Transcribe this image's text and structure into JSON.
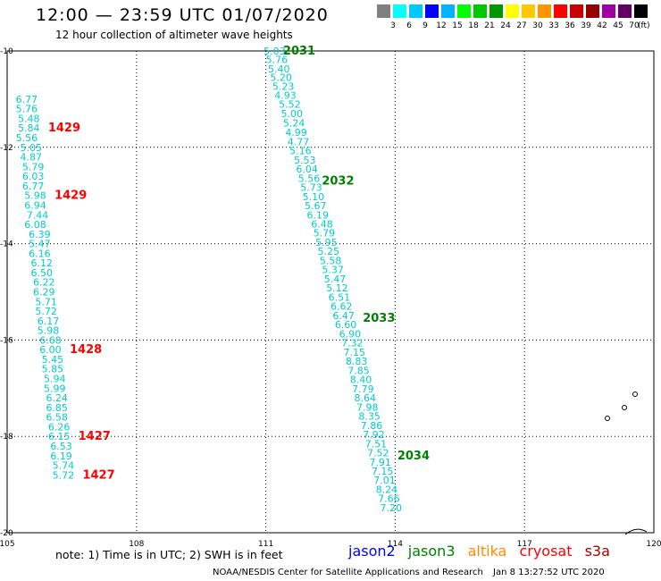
{
  "header": {
    "title": "12:00 — 23:59 UTC 01/07/2020",
    "subtitle": "12 hour collection of altimeter wave heights"
  },
  "legend": {
    "colors": [
      "#808080",
      "#00ffff",
      "#00c8ff",
      "#0000ff",
      "#00b4ff",
      "#00ff00",
      "#00c800",
      "#009600",
      "#ffff00",
      "#ffc800",
      "#ff9600",
      "#ff0000",
      "#c80000",
      "#960000",
      "#a000a0",
      "#640064",
      "#000000"
    ],
    "labels": [
      "3",
      "6",
      "9",
      "12",
      "15",
      "18",
      "21",
      "24",
      "27",
      "30",
      "33",
      "36",
      "39",
      "42",
      "45",
      "70"
    ],
    "units": "(ft)"
  },
  "footer": {
    "note": "note:  1) Time is in UTC;  2) SWH is in feet",
    "missions": [
      {
        "name": "jason2",
        "color": "#0000ff"
      },
      {
        "name": "jason3",
        "color": "#008000"
      },
      {
        "name": "altika",
        "color": "#ff8c00"
      },
      {
        "name": "cryosat",
        "color": "#ff0000"
      },
      {
        "name": "s3a",
        "color": "#a00000"
      }
    ],
    "credit": "NOAA/NESDIS Center for Satellite Applications and Research",
    "timestamp": "Jan  8 13:27:52 UTC 2020"
  },
  "chart_data": {
    "type": "scatter",
    "xlim": [
      105,
      120
    ],
    "ylim": [
      -20,
      -10
    ],
    "x_ticks": [
      "105",
      "108",
      "111",
      "114",
      "117",
      "120"
    ],
    "y_ticks": [
      "-10",
      "-12",
      "-14",
      "-16",
      "-18",
      "-20"
    ],
    "grid": true,
    "series": [
      {
        "name": "jason3",
        "color": "#00cccc",
        "label_color": "#008000",
        "points": [
          [
            110.95,
            -10.0,
            "5.03"
          ],
          [
            111.0,
            -10.18,
            "5.76"
          ],
          [
            111.05,
            -10.37,
            "5.40"
          ],
          [
            111.1,
            -10.55,
            "5.20"
          ],
          [
            111.15,
            -10.73,
            "5.23"
          ],
          [
            111.2,
            -10.92,
            "4.93"
          ],
          [
            111.3,
            -11.1,
            "5.52"
          ],
          [
            111.35,
            -11.3,
            "5.00"
          ],
          [
            111.4,
            -11.49,
            "5.24"
          ],
          [
            111.45,
            -11.69,
            "4.99"
          ],
          [
            111.5,
            -11.88,
            "4.77"
          ],
          [
            111.55,
            -12.07,
            "5.16"
          ],
          [
            111.65,
            -12.26,
            "5.53"
          ],
          [
            111.7,
            -12.45,
            "6.04"
          ],
          [
            111.75,
            -12.64,
            "5.56"
          ],
          [
            111.8,
            -12.83,
            "5.73"
          ],
          [
            111.85,
            -13.02,
            "5.10"
          ],
          [
            111.9,
            -13.21,
            "5.67"
          ],
          [
            111.95,
            -13.4,
            "6.19"
          ],
          [
            112.05,
            -13.59,
            "6.48"
          ],
          [
            112.1,
            -13.78,
            "5.79"
          ],
          [
            112.15,
            -13.97,
            "5.95"
          ],
          [
            112.2,
            -14.16,
            "5.25"
          ],
          [
            112.25,
            -14.35,
            "5.58"
          ],
          [
            112.3,
            -14.54,
            "5.37"
          ],
          [
            112.35,
            -14.73,
            "5.47"
          ],
          [
            112.4,
            -14.92,
            "5.12"
          ],
          [
            112.45,
            -15.11,
            "6.51"
          ],
          [
            112.5,
            -15.3,
            "6.62"
          ],
          [
            112.55,
            -15.49,
            "6.47"
          ],
          [
            112.6,
            -15.68,
            "6.60"
          ],
          [
            112.7,
            -15.87,
            "6.90"
          ],
          [
            112.75,
            -16.06,
            "7.32"
          ],
          [
            112.8,
            -16.25,
            "7.15"
          ],
          [
            112.85,
            -16.44,
            "8.83"
          ],
          [
            112.9,
            -16.63,
            "7.85"
          ],
          [
            112.95,
            -16.82,
            "8.40"
          ],
          [
            113.0,
            -17.01,
            "7.79"
          ],
          [
            113.05,
            -17.2,
            "8.64"
          ],
          [
            113.1,
            -17.39,
            "7.98"
          ],
          [
            113.15,
            -17.58,
            "8.35"
          ],
          [
            113.2,
            -17.77,
            "7.86"
          ],
          [
            113.25,
            -17.96,
            "7.92"
          ],
          [
            113.3,
            -18.15,
            "7.51"
          ],
          [
            113.35,
            -18.34,
            "7.52"
          ],
          [
            113.4,
            -18.53,
            "7.91"
          ],
          [
            113.45,
            -18.72,
            "7.15"
          ],
          [
            113.5,
            -18.91,
            "7.01"
          ],
          [
            113.55,
            -19.1,
            "8.24"
          ],
          [
            113.6,
            -19.29,
            "7.66"
          ],
          [
            113.65,
            -19.48,
            "7.20"
          ]
        ],
        "time_labels": [
          {
            "x": 111.4,
            "y": -10.0,
            "text": "2031"
          },
          {
            "x": 112.3,
            "y": -12.7,
            "text": "2032"
          },
          {
            "x": 113.25,
            "y": -15.55,
            "text": "2033"
          },
          {
            "x": 114.05,
            "y": -18.4,
            "text": "2034"
          }
        ]
      },
      {
        "name": "cryosat",
        "color": "#00cccc",
        "label_color": "#ff0000",
        "points": [
          [
            105.2,
            -11.0,
            "6.77"
          ],
          [
            105.2,
            -11.2,
            "5.76"
          ],
          [
            105.25,
            -11.4,
            "5.48"
          ],
          [
            105.25,
            -11.6,
            "5.84"
          ],
          [
            105.2,
            -11.8,
            "5.56"
          ],
          [
            105.3,
            -12.0,
            "5.05"
          ],
          [
            105.3,
            -12.2,
            "4.87"
          ],
          [
            105.35,
            -12.4,
            "5.79"
          ],
          [
            105.35,
            -12.6,
            "6.03"
          ],
          [
            105.35,
            -12.8,
            "6.77"
          ],
          [
            105.4,
            -13.0,
            "5.98"
          ],
          [
            105.4,
            -13.2,
            "6.94"
          ],
          [
            105.45,
            -13.4,
            "7.44"
          ],
          [
            105.4,
            -13.6,
            "6.08"
          ],
          [
            105.5,
            -13.8,
            "6.39"
          ],
          [
            105.5,
            -14.0,
            "5.47"
          ],
          [
            105.5,
            -14.2,
            "6.16"
          ],
          [
            105.55,
            -14.4,
            "6.12"
          ],
          [
            105.55,
            -14.6,
            "6.50"
          ],
          [
            105.6,
            -14.8,
            "6.22"
          ],
          [
            105.6,
            -15.0,
            "6.29"
          ],
          [
            105.65,
            -15.2,
            "5.71"
          ],
          [
            105.65,
            -15.4,
            "5.72"
          ],
          [
            105.7,
            -15.6,
            "6.17"
          ],
          [
            105.7,
            -15.8,
            "5.98"
          ],
          [
            105.75,
            -16.0,
            "6.68"
          ],
          [
            105.75,
            -16.2,
            "6.00"
          ],
          [
            105.8,
            -16.4,
            "5.45"
          ],
          [
            105.8,
            -16.6,
            "5.85"
          ],
          [
            105.85,
            -16.8,
            "5.94"
          ],
          [
            105.85,
            -17.0,
            "5.99"
          ],
          [
            105.9,
            -17.2,
            "6.24"
          ],
          [
            105.9,
            -17.4,
            "6.85"
          ],
          [
            105.9,
            -17.6,
            "6.58"
          ],
          [
            105.95,
            -17.8,
            "6.26"
          ],
          [
            105.95,
            -18.0,
            "6.15"
          ],
          [
            106.0,
            -18.2,
            "6.53"
          ],
          [
            106.0,
            -18.4,
            "6.19"
          ],
          [
            106.05,
            -18.6,
            "5.74"
          ],
          [
            106.05,
            -18.8,
            "5.72"
          ]
        ],
        "time_labels": [
          {
            "x": 105.95,
            "y": -11.6,
            "text": "1429"
          },
          {
            "x": 106.1,
            "y": -13.0,
            "text": "1429"
          },
          {
            "x": 106.45,
            "y": -16.2,
            "text": "1428"
          },
          {
            "x": 106.65,
            "y": -18.0,
            "text": "1427"
          },
          {
            "x": 106.75,
            "y": -18.8,
            "text": "1427"
          }
        ]
      }
    ]
  }
}
